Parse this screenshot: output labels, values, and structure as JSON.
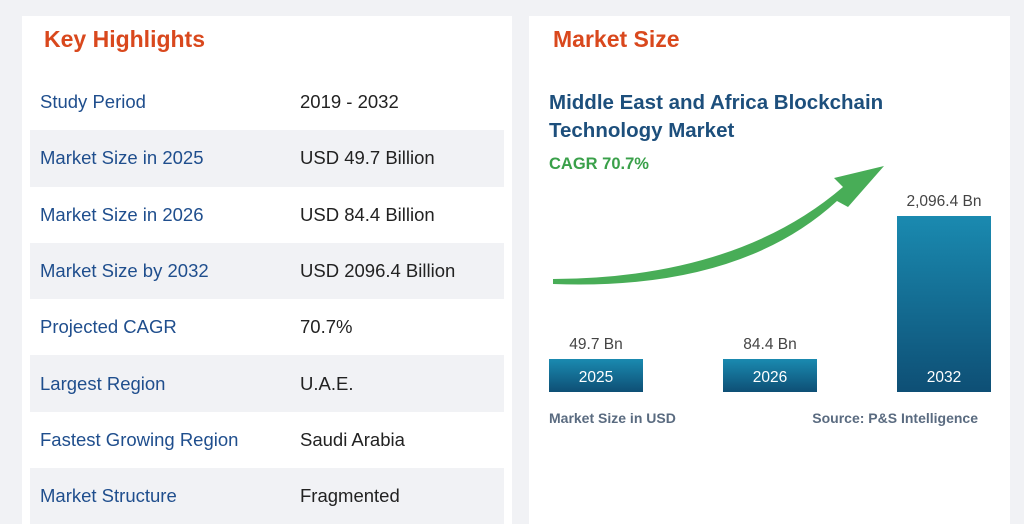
{
  "highlights": {
    "title": "Key Highlights",
    "rows": [
      {
        "label": "Study Period",
        "value": "2019 - 2032"
      },
      {
        "label": "Market Size in 2025",
        "value": "USD 49.7 Billion"
      },
      {
        "label": "Market Size in 2026",
        "value": "USD 84.4 Billion"
      },
      {
        "label": "Market Size by 2032",
        "value": "USD 2096.4 Billion"
      },
      {
        "label": "Projected CAGR",
        "value": "70.7%"
      },
      {
        "label": "Largest Region",
        "value": "U.A.E."
      },
      {
        "label": "Fastest Growing Region",
        "value": "Saudi Arabia"
      },
      {
        "label": "Market Structure",
        "value": "Fragmented"
      }
    ]
  },
  "market_size": {
    "title": "Market Size"
  },
  "chart_data": {
    "type": "bar",
    "title_lines": [
      "Middle East and Africa Blockchain",
      "Technology Market"
    ],
    "cagr_label": "CAGR 70.7%",
    "categories": [
      "2025",
      "2026",
      "2032"
    ],
    "values": [
      49.7,
      84.4,
      2096.4
    ],
    "value_labels": [
      "49.7 Bn",
      "84.4 Bn",
      "2,096.4 Bn"
    ],
    "xlabel": "Market Size in USD",
    "source": "Source: P&S Intelligence",
    "colors": {
      "bar_top": "#1a8ab0",
      "bar_bottom": "#0e4f75",
      "arrow": "#48ad57"
    }
  }
}
